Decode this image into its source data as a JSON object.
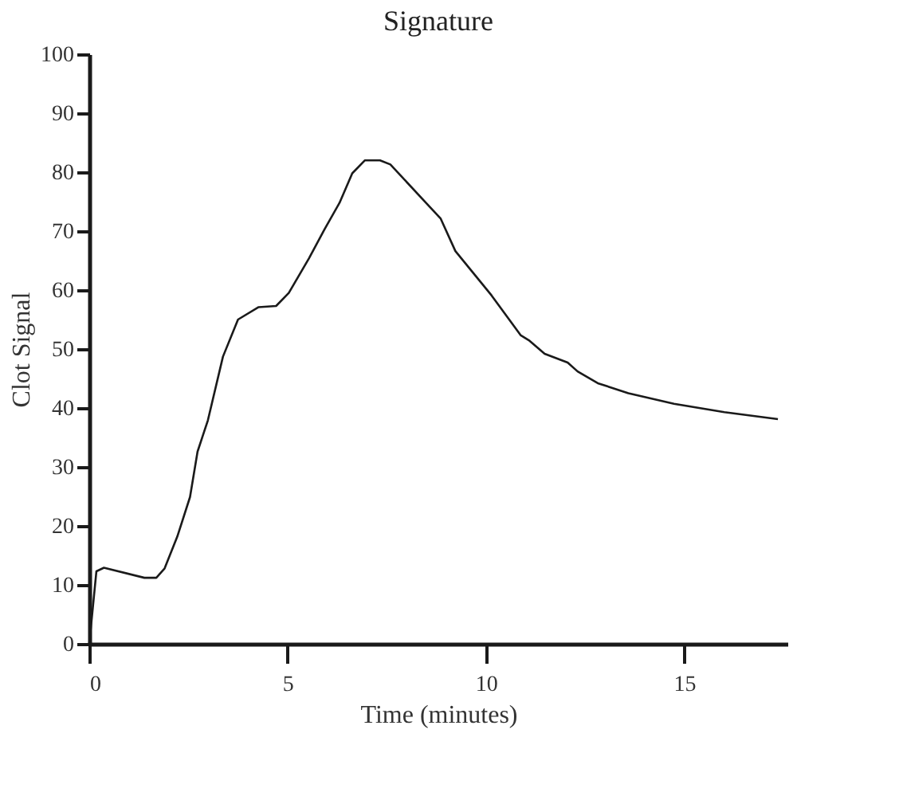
{
  "chart_data": {
    "type": "line",
    "title": "Signature",
    "xlabel": "Time (minutes)",
    "ylabel": "Clot Signal",
    "xlim": [
      0,
      17.6
    ],
    "ylim": [
      0,
      100
    ],
    "xticks": [
      0,
      5,
      10,
      15
    ],
    "yticks": [
      0,
      10,
      20,
      30,
      40,
      50,
      60,
      70,
      80,
      90,
      100
    ],
    "grid": false,
    "marker": "none",
    "line_style": "solid",
    "series": [
      {
        "color": "#1a1a1a",
        "x": [
          0,
          0.18,
          0.37,
          1.39,
          1.69,
          1.9,
          2.22,
          2.54,
          2.73,
          2.99,
          3.37,
          3.75,
          4.27,
          4.71,
          5.03,
          5.54,
          5.93,
          6.31,
          6.63,
          6.95,
          7.33,
          7.59,
          8.86,
          9.23,
          10.14,
          10.88,
          11.1,
          11.48,
          12.06,
          12.31,
          12.82,
          13.59,
          14.74,
          16.01,
          17.36
        ],
        "values": [
          0,
          12.3,
          12.9,
          11.2,
          11.2,
          12.8,
          18.2,
          24.9,
          32.6,
          37.9,
          48.7,
          55.0,
          57.1,
          57.3,
          59.5,
          65.4,
          70.3,
          74.8,
          79.8,
          82.0,
          82.0,
          81.3,
          72.1,
          66.6,
          59.1,
          52.3,
          51.4,
          49.2,
          47.7,
          46.2,
          44.2,
          42.5,
          40.7,
          39.3,
          38.1
        ]
      }
    ]
  }
}
